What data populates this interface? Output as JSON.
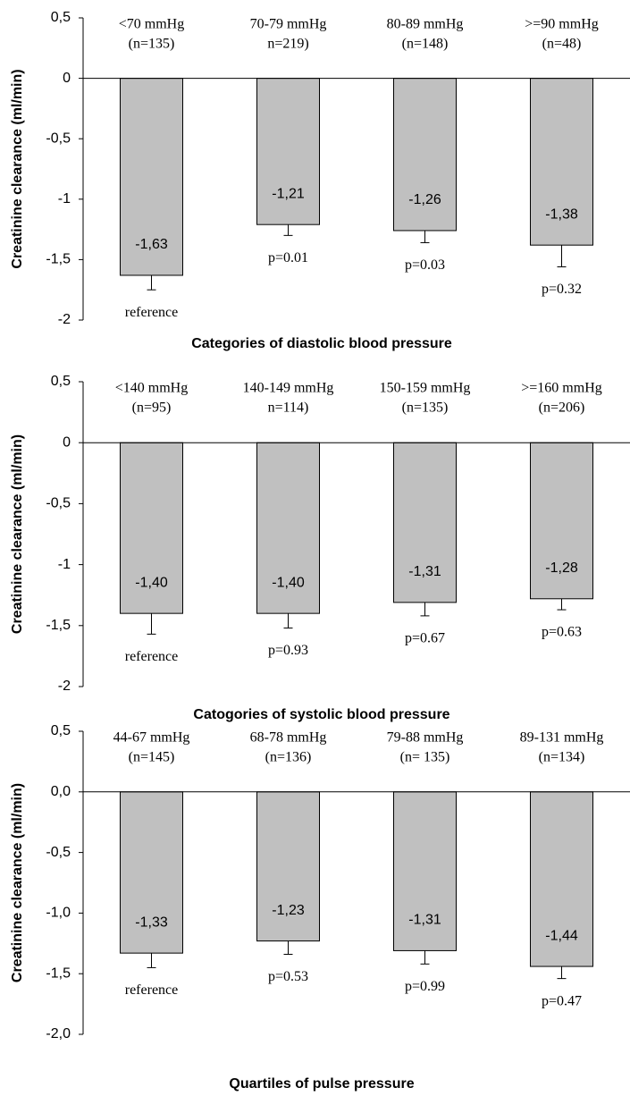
{
  "chart_data": [
    {
      "type": "bar",
      "title": "Categories of diastolic blood pressure",
      "ylabel": "Creatinine clearance (ml/min)",
      "categories": [
        [
          "<70 mmHg",
          "(n=135)"
        ],
        [
          "70-79 mmHg",
          "n=219)"
        ],
        [
          "80-89 mmHg",
          "(n=148)"
        ],
        [
          ">=90 mmHg",
          "(n=48)"
        ]
      ],
      "values": [
        -1.63,
        -1.21,
        -1.26,
        -1.38
      ],
      "value_labels": [
        "-1,63",
        "-1,21",
        "-1,26",
        "-1,38"
      ],
      "errors": [
        0.12,
        0.09,
        0.1,
        0.18
      ],
      "annotations": [
        "reference",
        "p=0.01",
        "p=0.03",
        "p=0.32"
      ],
      "color": "#c0c0c0",
      "ylim": [
        -2,
        0.5
      ],
      "yticks": [
        -2,
        {
          "value": -1.5,
          "label": "-1,5"
        },
        -1,
        {
          "value": -0.5,
          "label": "-0,5"
        },
        0,
        {
          "value": 0.5,
          "label": "0,5"
        }
      ]
    },
    {
      "type": "bar",
      "title": "Catogories of systolic blood pressure",
      "ylabel": "Creatinine clearance (ml/min)",
      "categories": [
        [
          "<140 mmHg",
          "(n=95)"
        ],
        [
          "140-149 mmHg",
          "n=114)"
        ],
        [
          "150-159 mmHg",
          "(n=135)"
        ],
        [
          ">=160 mmHg",
          "(n=206)"
        ]
      ],
      "values": [
        -1.4,
        -1.4,
        -1.31,
        -1.28
      ],
      "value_labels": [
        "-1,40",
        "-1,40",
        "-1,31",
        "-1,28"
      ],
      "errors": [
        0.17,
        0.12,
        0.11,
        0.09
      ],
      "annotations": [
        "reference",
        "p=0.93",
        "p=0.67",
        "p=0.63"
      ],
      "color": "#c0c0c0",
      "ylim": [
        -2,
        0.5
      ],
      "yticks": [
        -2,
        {
          "value": -1.5,
          "label": "-1,5"
        },
        -1,
        {
          "value": -0.5,
          "label": "-0,5"
        },
        0,
        {
          "value": 0.5,
          "label": "0,5"
        }
      ]
    },
    {
      "type": "bar",
      "title": "Quartiles of pulse pressure",
      "ylabel": "Creatinine clearance (ml/min)",
      "categories": [
        [
          "44-67 mmHg",
          "(n=145)"
        ],
        [
          "68-78 mmHg",
          "(n=136)"
        ],
        [
          "79-88 mmHg",
          "(n= 135)"
        ],
        [
          "89-131 mmHg",
          "(n=134)"
        ]
      ],
      "values": [
        -1.33,
        -1.23,
        -1.31,
        -1.44
      ],
      "value_labels": [
        "-1,33",
        "-1,23",
        "-1,31",
        "-1,44"
      ],
      "errors": [
        0.12,
        0.11,
        0.11,
        0.1
      ],
      "annotations": [
        "reference",
        "p=0.53",
        "p=0.99",
        "p=0.47"
      ],
      "color": "#c0c0c0",
      "ylim": [
        -2,
        0.5
      ],
      "yticks": [
        {
          "value": -2,
          "label": "-2,0"
        },
        {
          "value": -1.5,
          "label": "-1,5"
        },
        {
          "value": -1,
          "label": "-1,0"
        },
        {
          "value": -0.5,
          "label": "-0,5"
        },
        {
          "value": 0,
          "label": "0,0"
        },
        {
          "value": 0.5,
          "label": "0,5"
        }
      ]
    }
  ]
}
